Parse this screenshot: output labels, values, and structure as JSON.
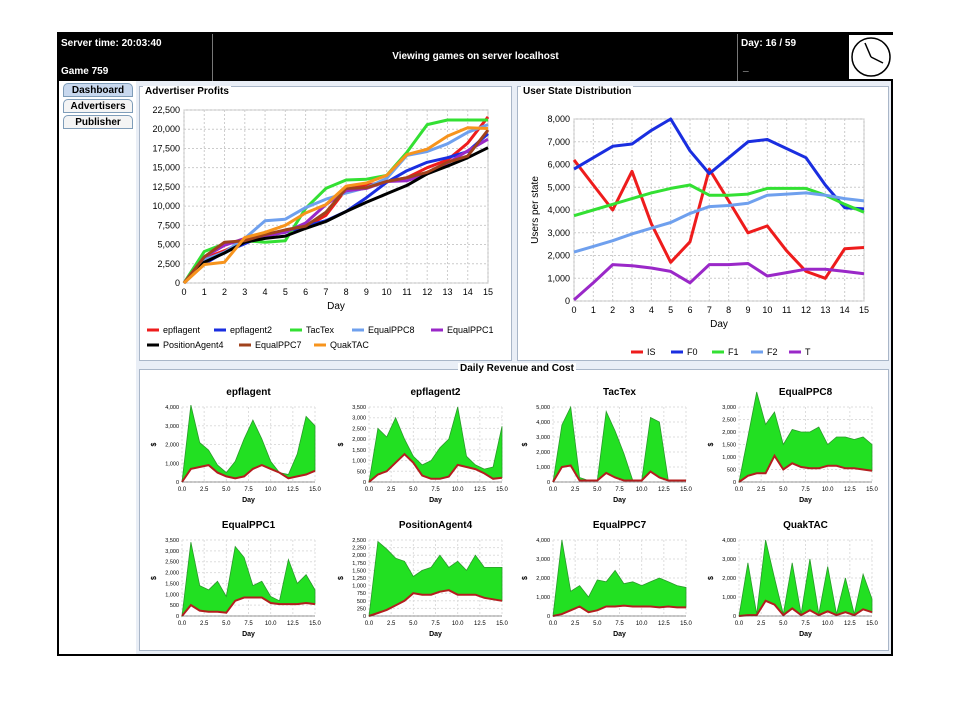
{
  "header": {
    "server_time": "Server time: 20:03:40",
    "game": "Game 759",
    "title": "Viewing games on server localhost",
    "day": "Day: 16 / 59",
    "day_extra": "_"
  },
  "nav": {
    "tabs": [
      "Dashboard",
      "Advertisers",
      "Publisher"
    ],
    "active": "Dashboard"
  },
  "panels": {
    "profits_title": "Advertiser Profits",
    "users_title": "User State Distribution",
    "revenue_title": "Daily Revenue and Cost"
  },
  "chart_data": [
    {
      "type": "line",
      "title": "Advertiser Profits",
      "xlabel": "Day",
      "ylabel": "",
      "x": [
        0,
        1,
        2,
        3,
        4,
        5,
        6,
        7,
        8,
        9,
        10,
        11,
        12,
        13,
        14,
        15
      ],
      "xlim": [
        0,
        15
      ],
      "ylim": [
        0,
        22500
      ],
      "yticks": [
        0,
        2500,
        5000,
        7500,
        10000,
        12500,
        15000,
        17500,
        20000,
        22500
      ],
      "grid": true,
      "legend": "bottom",
      "series": [
        {
          "name": "epflagent",
          "color": "#ee1c1c",
          "values": [
            0,
            3200,
            4200,
            5400,
            6200,
            6700,
            7300,
            8800,
            12200,
            12700,
            13200,
            13700,
            15000,
            16000,
            18200,
            21600
          ]
        },
        {
          "name": "epflagent2",
          "color": "#1a2ee0",
          "values": [
            0,
            2500,
            4000,
            5100,
            6300,
            6600,
            7400,
            8100,
            9300,
            11100,
            13100,
            14600,
            15700,
            16300,
            17100,
            19400
          ]
        },
        {
          "name": "TacTex",
          "color": "#33e033",
          "values": [
            0,
            4100,
            5100,
            5500,
            5300,
            5500,
            9700,
            12300,
            13400,
            13500,
            14000,
            17000,
            20600,
            21200,
            21200,
            21200
          ]
        },
        {
          "name": "EqualPPC8",
          "color": "#6fa0ee",
          "values": [
            0,
            3000,
            4000,
            5800,
            8100,
            8300,
            9800,
            10900,
            11700,
            12400,
            13600,
            16600,
            17100,
            18100,
            19600,
            20600
          ]
        },
        {
          "name": "EqualPPC1",
          "color": "#9a28c8",
          "values": [
            0,
            3400,
            4900,
            5800,
            6100,
            6600,
            7800,
            10200,
            12000,
            12300,
            13200,
            13300,
            14200,
            15600,
            17200,
            18700
          ]
        },
        {
          "name": "PositionAgent4",
          "color": "#000000",
          "values": [
            0,
            2700,
            3900,
            5300,
            5800,
            6100,
            7100,
            8000,
            9300,
            10500,
            11600,
            12700,
            14200,
            15200,
            16300,
            17600
          ]
        },
        {
          "name": "EqualPPC7",
          "color": "#a0421c",
          "values": [
            0,
            3400,
            5300,
            5500,
            6300,
            6900,
            7400,
            9200,
            12300,
            12400,
            13200,
            13700,
            14400,
            15700,
            16500,
            19900
          ]
        },
        {
          "name": "QuakTAC",
          "color": "#f7941d",
          "values": [
            0,
            2400,
            2700,
            5900,
            6600,
            7500,
            9100,
            10200,
            12600,
            13000,
            14000,
            16700,
            17400,
            19100,
            20200,
            20100
          ]
        }
      ]
    },
    {
      "type": "line",
      "title": "User State Distribution",
      "xlabel": "Day",
      "ylabel": "Users per state",
      "x": [
        0,
        1,
        2,
        3,
        4,
        5,
        6,
        7,
        8,
        9,
        10,
        11,
        12,
        13,
        14,
        15
      ],
      "xlim": [
        0,
        15
      ],
      "ylim": [
        0,
        8000
      ],
      "yticks": [
        0,
        1000,
        2000,
        3000,
        4000,
        5000,
        6000,
        7000,
        8000
      ],
      "grid": true,
      "legend": "bottom",
      "series": [
        {
          "name": "IS",
          "color": "#ee1c1c",
          "values": [
            6200,
            5100,
            4000,
            5700,
            3400,
            1700,
            2600,
            5800,
            4400,
            3000,
            3300,
            2200,
            1300,
            1000,
            2300,
            2350
          ]
        },
        {
          "name": "F0",
          "color": "#1a2ee0",
          "values": [
            5800,
            6300,
            6800,
            6900,
            7500,
            8000,
            6600,
            5600,
            6300,
            7000,
            7100,
            6700,
            6300,
            5100,
            4100,
            4050
          ]
        },
        {
          "name": "F1",
          "color": "#33e033",
          "values": [
            3750,
            4000,
            4250,
            4500,
            4750,
            4950,
            5100,
            4650,
            4650,
            4700,
            4950,
            4950,
            4950,
            4650,
            4250,
            3900
          ]
        },
        {
          "name": "F2",
          "color": "#6fa0ee",
          "values": [
            2150,
            2400,
            2650,
            2950,
            3200,
            3450,
            3850,
            4150,
            4200,
            4300,
            4650,
            4700,
            4750,
            4650,
            4500,
            4400
          ]
        },
        {
          "name": "T",
          "color": "#9a28c8",
          "values": [
            50,
            800,
            1600,
            1550,
            1450,
            1300,
            800,
            1600,
            1600,
            1650,
            1100,
            1250,
            1400,
            1400,
            1300,
            1200
          ]
        }
      ]
    },
    {
      "type": "area",
      "title": "epflagent",
      "xlabel": "Day",
      "ylabel": "$",
      "x": [
        0,
        1,
        2,
        3,
        4,
        5,
        6,
        7,
        8,
        9,
        10,
        11,
        12,
        13,
        14,
        15
      ],
      "xlim": [
        0,
        15
      ],
      "ylim": [
        0,
        4000
      ],
      "yticks": [
        0,
        1000,
        2000,
        3000,
        4000
      ],
      "series": [
        {
          "name": "revenue",
          "color": "#22e022",
          "values": [
            0,
            4100,
            2100,
            1700,
            900,
            500,
            1100,
            2300,
            3300,
            2300,
            1100,
            500,
            400,
            1500,
            3500,
            3000
          ]
        },
        {
          "name": "cost",
          "color": "#b41e1e",
          "values": [
            0,
            700,
            800,
            900,
            500,
            300,
            200,
            300,
            700,
            900,
            700,
            500,
            200,
            300,
            400,
            600
          ]
        }
      ]
    },
    {
      "type": "area",
      "title": "epflagent2",
      "xlabel": "Day",
      "ylabel": "$",
      "x": [
        0,
        1,
        2,
        3,
        4,
        5,
        6,
        7,
        8,
        9,
        10,
        11,
        12,
        13,
        14,
        15
      ],
      "xlim": [
        0,
        15
      ],
      "ylim": [
        0,
        3500
      ],
      "yticks": [
        0,
        500,
        1000,
        1500,
        2000,
        2500,
        3000,
        3500
      ],
      "series": [
        {
          "name": "revenue",
          "color": "#22e022",
          "values": [
            0,
            2500,
            2100,
            3000,
            2000,
            1200,
            800,
            1000,
            1600,
            2000,
            3500,
            1200,
            800,
            600,
            700,
            2600
          ]
        },
        {
          "name": "cost",
          "color": "#b41e1e",
          "values": [
            0,
            350,
            500,
            900,
            1300,
            900,
            300,
            150,
            150,
            250,
            800,
            700,
            600,
            400,
            150,
            200
          ]
        }
      ]
    },
    {
      "type": "area",
      "title": "TacTex",
      "xlabel": "Day",
      "ylabel": "$",
      "x": [
        0,
        1,
        2,
        3,
        4,
        5,
        6,
        7,
        8,
        9,
        10,
        11,
        12,
        13,
        14,
        15
      ],
      "xlim": [
        0,
        15
      ],
      "ylim": [
        0,
        5000
      ],
      "yticks": [
        0,
        1000,
        2000,
        3000,
        4000,
        5000
      ],
      "series": [
        {
          "name": "revenue",
          "color": "#22e022",
          "values": [
            0,
            3800,
            5000,
            300,
            100,
            100,
            4700,
            3400,
            1900,
            100,
            100,
            4300,
            4000,
            100,
            100,
            100
          ]
        },
        {
          "name": "cost",
          "color": "#b41e1e",
          "values": [
            0,
            1000,
            1100,
            100,
            100,
            100,
            600,
            300,
            100,
            100,
            100,
            700,
            300,
            100,
            100,
            100
          ]
        }
      ]
    },
    {
      "type": "area",
      "title": "EqualPPC8",
      "xlabel": "Day",
      "ylabel": "$",
      "x": [
        0,
        1,
        2,
        3,
        4,
        5,
        6,
        7,
        8,
        9,
        10,
        11,
        12,
        13,
        14,
        15
      ],
      "xlim": [
        0,
        15
      ],
      "ylim": [
        0,
        3000
      ],
      "yticks": [
        0,
        500,
        1000,
        1500,
        2000,
        2500,
        3000
      ],
      "series": [
        {
          "name": "revenue",
          "color": "#22e022",
          "values": [
            0,
            1800,
            3600,
            2300,
            2800,
            1500,
            2100,
            2000,
            2000,
            2200,
            1500,
            1800,
            1800,
            1700,
            1800,
            1500
          ]
        },
        {
          "name": "cost",
          "color": "#b41e1e",
          "values": [
            0,
            250,
            350,
            350,
            1050,
            500,
            750,
            600,
            550,
            550,
            650,
            650,
            550,
            550,
            500,
            450
          ]
        }
      ]
    },
    {
      "type": "area",
      "title": "EqualPPC1",
      "xlabel": "Day",
      "ylabel": "$",
      "x": [
        0,
        1,
        2,
        3,
        4,
        5,
        6,
        7,
        8,
        9,
        10,
        11,
        12,
        13,
        14,
        15
      ],
      "xlim": [
        0,
        15
      ],
      "ylim": [
        0,
        3500
      ],
      "yticks": [
        0,
        500,
        1000,
        1500,
        2000,
        2500,
        3000,
        3500
      ],
      "series": [
        {
          "name": "revenue",
          "color": "#22e022",
          "values": [
            0,
            3400,
            1400,
            1200,
            1600,
            900,
            3200,
            2700,
            1400,
            1600,
            900,
            700,
            2600,
            1500,
            1900,
            1200
          ]
        },
        {
          "name": "cost",
          "color": "#b41e1e",
          "values": [
            0,
            500,
            250,
            200,
            200,
            150,
            700,
            850,
            850,
            850,
            600,
            550,
            550,
            550,
            600,
            550
          ]
        }
      ]
    },
    {
      "type": "area",
      "title": "PositionAgent4",
      "xlabel": "Day",
      "ylabel": "$",
      "x": [
        0,
        1,
        2,
        3,
        4,
        5,
        6,
        7,
        8,
        9,
        10,
        11,
        12,
        13,
        14,
        15
      ],
      "xlim": [
        0,
        15
      ],
      "ylim": [
        0,
        2500
      ],
      "yticks": [
        0,
        250,
        500,
        750,
        1000,
        1250,
        1500,
        1750,
        2000,
        2250,
        2500
      ],
      "series": [
        {
          "name": "revenue",
          "color": "#22e022",
          "values": [
            0,
            2450,
            2200,
            1900,
            1800,
            1300,
            1500,
            1600,
            2000,
            1600,
            1800,
            1500,
            2000,
            1600,
            1600,
            1600
          ]
        },
        {
          "name": "cost",
          "color": "#b41e1e",
          "values": [
            0,
            100,
            200,
            350,
            500,
            750,
            700,
            700,
            800,
            850,
            700,
            700,
            700,
            600,
            550,
            500
          ]
        }
      ]
    },
    {
      "type": "area",
      "title": "EqualPPC7",
      "xlabel": "Day",
      "ylabel": "$",
      "x": [
        0,
        1,
        2,
        3,
        4,
        5,
        6,
        7,
        8,
        9,
        10,
        11,
        12,
        13,
        14,
        15
      ],
      "xlim": [
        0,
        15
      ],
      "ylim": [
        0,
        4000
      ],
      "yticks": [
        0,
        1000,
        2000,
        3000,
        4000
      ],
      "series": [
        {
          "name": "revenue",
          "color": "#22e022",
          "values": [
            0,
            4000,
            1300,
            1600,
            1000,
            1900,
            1800,
            2400,
            1700,
            1800,
            1600,
            1800,
            2000,
            1800,
            1600,
            1500
          ]
        },
        {
          "name": "cost",
          "color": "#b41e1e",
          "values": [
            0,
            100,
            300,
            500,
            200,
            300,
            500,
            500,
            550,
            500,
            500,
            500,
            450,
            500,
            450,
            450
          ]
        }
      ]
    },
    {
      "type": "area",
      "title": "QuakTAC",
      "xlabel": "Day",
      "ylabel": "$",
      "x": [
        0,
        1,
        2,
        3,
        4,
        5,
        6,
        7,
        8,
        9,
        10,
        11,
        12,
        13,
        14,
        15
      ],
      "xlim": [
        0,
        15
      ],
      "ylim": [
        0,
        4000
      ],
      "yticks": [
        0,
        1000,
        2000,
        3000,
        4000
      ],
      "series": [
        {
          "name": "revenue",
          "color": "#22e022",
          "values": [
            0,
            2800,
            100,
            4000,
            2000,
            100,
            2800,
            100,
            3000,
            100,
            2600,
            100,
            2000,
            100,
            2200,
            900
          ]
        },
        {
          "name": "cost",
          "color": "#b41e1e",
          "values": [
            0,
            50,
            50,
            800,
            600,
            50,
            400,
            50,
            300,
            50,
            250,
            50,
            200,
            50,
            350,
            200
          ]
        }
      ]
    }
  ]
}
